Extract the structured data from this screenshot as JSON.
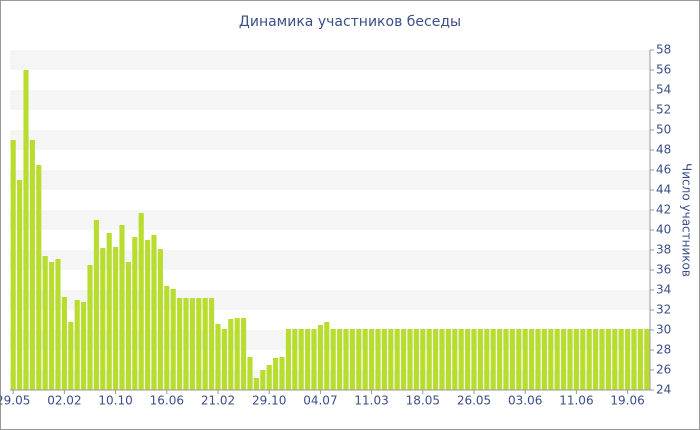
{
  "chart_data": {
    "type": "bar",
    "title": "Динамика участников беседы",
    "y_label": "Число участников",
    "categories": [
      "29.05",
      null,
      null,
      null,
      null,
      null,
      null,
      null,
      "02.02",
      null,
      null,
      null,
      null,
      null,
      null,
      null,
      "10.10",
      null,
      null,
      null,
      null,
      null,
      null,
      null,
      "16.06",
      null,
      null,
      null,
      null,
      null,
      null,
      null,
      "21.02",
      null,
      null,
      null,
      null,
      null,
      null,
      null,
      "29.10",
      null,
      null,
      null,
      null,
      null,
      null,
      null,
      "04.07",
      null,
      null,
      null,
      null,
      null,
      null,
      null,
      "11.03",
      null,
      null,
      null,
      null,
      null,
      null,
      null,
      "18.05",
      null,
      null,
      null,
      null,
      null,
      null,
      null,
      "26.05",
      null,
      null,
      null,
      null,
      null,
      null,
      null,
      "03.06",
      null,
      null,
      null,
      null,
      null,
      null,
      null,
      "11.06",
      null,
      null,
      null,
      null,
      null,
      null,
      null,
      "19.06",
      null,
      null,
      null
    ],
    "values": [
      49,
      45,
      56,
      49,
      46.5,
      37.4,
      36.8,
      37.1,
      33.3,
      30.8,
      33,
      32.8,
      36.5,
      41,
      38.2,
      39.7,
      38.3,
      40.5,
      36.8,
      39.3,
      41.7,
      39,
      39.5,
      38.1,
      34.4,
      34.1,
      33.2,
      33.2,
      33.2,
      33.2,
      33.2,
      33.2,
      30.6,
      30.1,
      31.1,
      31.2,
      31.2,
      27.3,
      25.2,
      26,
      26.5,
      27.2,
      27.3,
      30.1,
      30.1,
      30.1,
      30.1,
      30.1,
      30.5,
      30.8,
      30.1,
      30.1,
      30.1,
      30.1,
      30.1,
      30.1,
      30.1,
      30.1,
      30.1,
      30.1,
      30.1,
      30.1,
      30.1,
      30.1,
      30.1,
      30.1,
      30.1,
      30.1,
      30.1,
      30.1,
      30.1,
      30.1,
      30.1,
      30.1,
      30.1,
      30.1,
      30.1,
      30.1,
      30.1,
      30.1,
      30.1,
      30.1,
      30.1,
      30.1,
      30.1,
      30.1,
      30.1,
      30.1,
      30.1,
      30.1,
      30.1,
      30.1,
      30.1,
      30.1,
      30.1,
      30.1,
      30.1,
      30.1,
      30.1,
      30.1
    ],
    "color": "#b8dd2e",
    "ylim": [
      24,
      58
    ],
    "yticks": [
      24,
      26,
      28,
      30,
      32,
      34,
      36,
      38,
      40,
      42,
      44,
      46,
      48,
      50,
      52,
      54,
      56,
      58
    ],
    "grid": true
  }
}
